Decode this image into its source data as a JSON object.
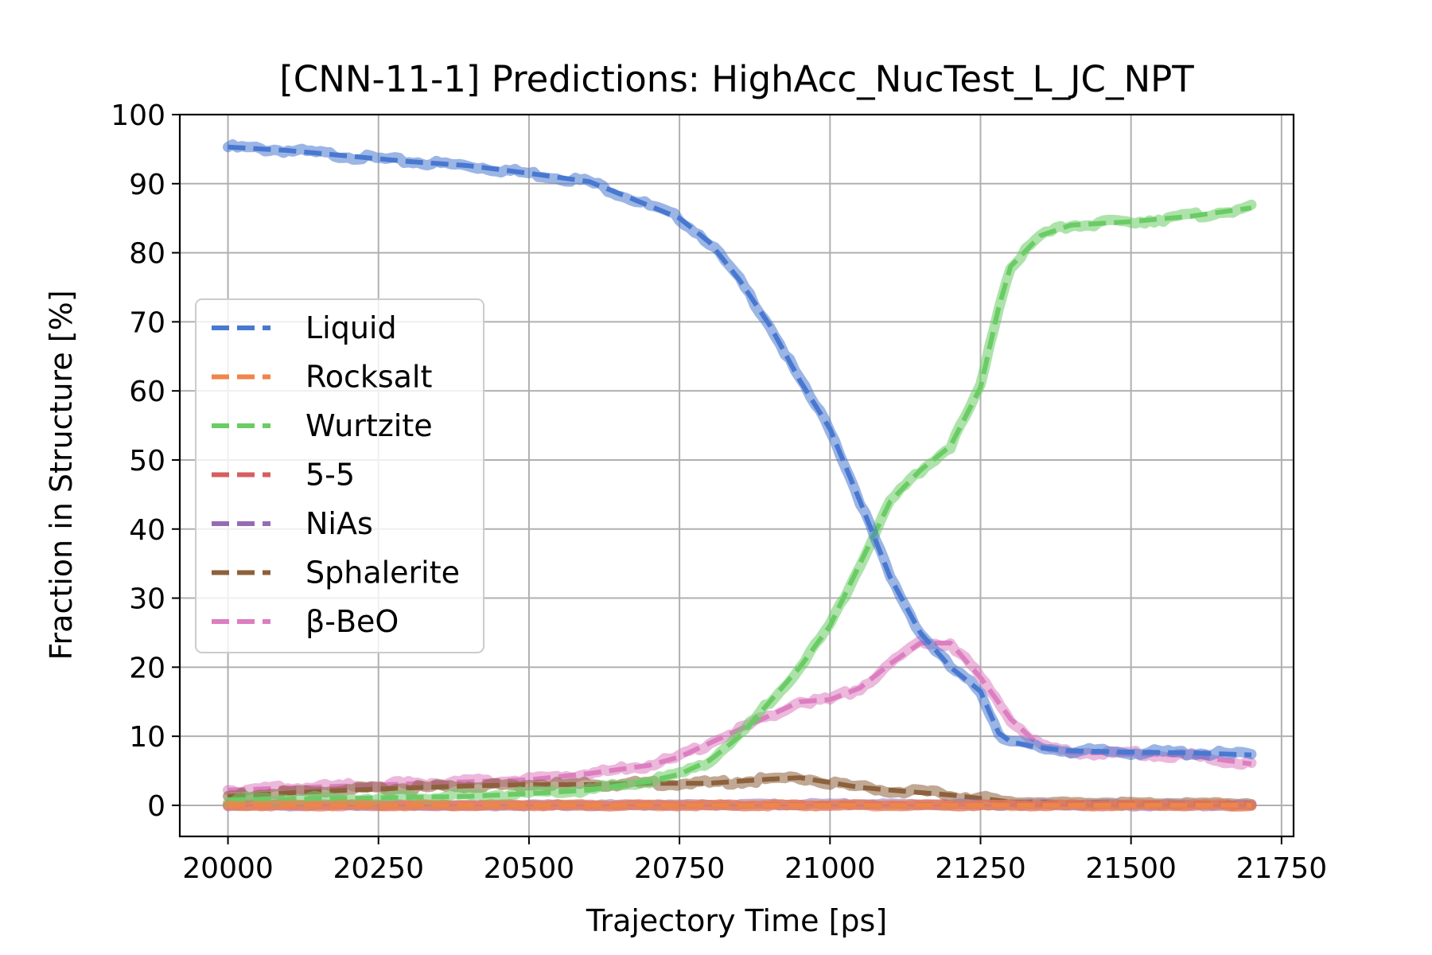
{
  "chart_data": {
    "type": "line",
    "title": "[CNN-11-1] Predictions: HighAcc_NucTest_L_JC_NPT",
    "xlabel": "Trajectory Time [ps]",
    "ylabel": "Fraction in Structure [%]",
    "xlim": [
      19920,
      21770
    ],
    "ylim": [
      -4.5,
      100
    ],
    "xticks": [
      20000,
      20250,
      20500,
      20750,
      21000,
      21250,
      21500,
      21750
    ],
    "yticks": [
      0,
      10,
      20,
      30,
      40,
      50,
      60,
      70,
      80,
      90,
      100
    ],
    "grid": true,
    "legend_position": "center-left",
    "line_style": "dashed, with translucent jittery trace beneath",
    "series": [
      {
        "name": "Liquid",
        "color": "#4878d0",
        "points": [
          [
            20000,
            95.3
          ],
          [
            20100,
            94.8
          ],
          [
            20200,
            94.0
          ],
          [
            20300,
            93.2
          ],
          [
            20400,
            92.6
          ],
          [
            20500,
            91.5
          ],
          [
            20600,
            90.3
          ],
          [
            20700,
            86.8
          ],
          [
            20750,
            85.0
          ],
          [
            20800,
            81.5
          ],
          [
            20850,
            76.0
          ],
          [
            20900,
            69.5
          ],
          [
            20950,
            61.5
          ],
          [
            21000,
            54.5
          ],
          [
            21050,
            44.0
          ],
          [
            21100,
            33.0
          ],
          [
            21150,
            25.0
          ],
          [
            21200,
            20.0
          ],
          [
            21250,
            16.5
          ],
          [
            21280,
            10.5
          ],
          [
            21300,
            9.2
          ],
          [
            21350,
            8.3
          ],
          [
            21400,
            7.9
          ],
          [
            21500,
            7.7
          ],
          [
            21600,
            7.6
          ],
          [
            21700,
            7.3
          ]
        ]
      },
      {
        "name": "Rocksalt",
        "color": "#ee854a",
        "points": [
          [
            20000,
            0.0
          ],
          [
            20500,
            0.0
          ],
          [
            21000,
            0.0
          ],
          [
            21500,
            0.0
          ],
          [
            21700,
            0.0
          ]
        ]
      },
      {
        "name": "Wurtzite",
        "color": "#6acc64",
        "points": [
          [
            20000,
            0.8
          ],
          [
            20200,
            1.0
          ],
          [
            20400,
            1.3
          ],
          [
            20500,
            1.7
          ],
          [
            20600,
            2.2
          ],
          [
            20700,
            3.5
          ],
          [
            20750,
            4.5
          ],
          [
            20800,
            6.5
          ],
          [
            20850,
            10.0
          ],
          [
            20900,
            15.0
          ],
          [
            20950,
            20.0
          ],
          [
            21000,
            26.0
          ],
          [
            21050,
            35.0
          ],
          [
            21100,
            44.0
          ],
          [
            21150,
            48.5
          ],
          [
            21200,
            52.0
          ],
          [
            21250,
            60.5
          ],
          [
            21280,
            72.0
          ],
          [
            21300,
            78.0
          ],
          [
            21350,
            82.5
          ],
          [
            21400,
            84.0
          ],
          [
            21500,
            84.5
          ],
          [
            21600,
            85.3
          ],
          [
            21700,
            86.5
          ]
        ]
      },
      {
        "name": "5-5",
        "color": "#d65f5f",
        "points": [
          [
            20000,
            0.0
          ],
          [
            20500,
            0.0
          ],
          [
            21000,
            0.0
          ],
          [
            21500,
            0.0
          ],
          [
            21700,
            0.0
          ]
        ]
      },
      {
        "name": "NiAs",
        "color": "#956cb4",
        "points": [
          [
            20000,
            0.0
          ],
          [
            20500,
            0.0
          ],
          [
            20900,
            0.1
          ],
          [
            21000,
            0.2
          ],
          [
            21200,
            0.1
          ],
          [
            21500,
            0.0
          ],
          [
            21700,
            0.0
          ]
        ]
      },
      {
        "name": "Sphalerite",
        "color": "#8c613c",
        "points": [
          [
            20000,
            1.3
          ],
          [
            20100,
            1.8
          ],
          [
            20200,
            2.2
          ],
          [
            20300,
            2.5
          ],
          [
            20400,
            2.8
          ],
          [
            20500,
            3.0
          ],
          [
            20600,
            3.0
          ],
          [
            20700,
            3.2
          ],
          [
            20800,
            3.2
          ],
          [
            20900,
            3.8
          ],
          [
            20950,
            4.0
          ],
          [
            21000,
            3.3
          ],
          [
            21050,
            2.6
          ],
          [
            21100,
            2.2
          ],
          [
            21200,
            1.5
          ],
          [
            21250,
            1.0
          ],
          [
            21300,
            0.5
          ],
          [
            21400,
            0.4
          ],
          [
            21500,
            0.4
          ],
          [
            21600,
            0.3
          ],
          [
            21700,
            0.3
          ]
        ]
      },
      {
        "name": "β-BeO",
        "color": "#dc7ec0",
        "points": [
          [
            20000,
            2.2
          ],
          [
            20100,
            2.5
          ],
          [
            20200,
            2.8
          ],
          [
            20300,
            3.1
          ],
          [
            20400,
            3.4
          ],
          [
            20500,
            3.7
          ],
          [
            20600,
            4.6
          ],
          [
            20700,
            5.8
          ],
          [
            20750,
            7.0
          ],
          [
            20800,
            9.0
          ],
          [
            20850,
            11.0
          ],
          [
            20900,
            13.0
          ],
          [
            20950,
            15.0
          ],
          [
            21000,
            15.3
          ],
          [
            21050,
            17.0
          ],
          [
            21100,
            20.5
          ],
          [
            21150,
            23.5
          ],
          [
            21200,
            23.5
          ],
          [
            21250,
            18.5
          ],
          [
            21300,
            12.5
          ],
          [
            21350,
            8.5
          ],
          [
            21400,
            7.7
          ],
          [
            21500,
            7.5
          ],
          [
            21600,
            7.2
          ],
          [
            21700,
            6.0
          ]
        ]
      }
    ]
  }
}
